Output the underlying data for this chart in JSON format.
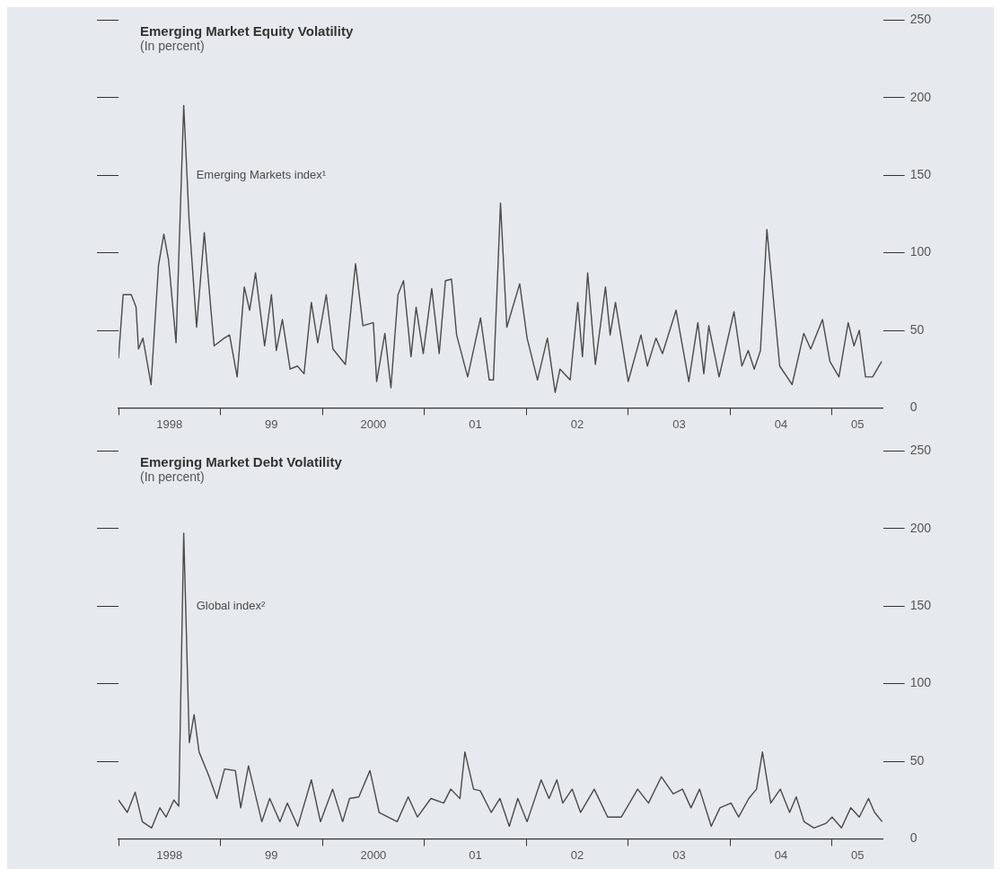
{
  "chart_data": [
    {
      "type": "line",
      "title": "Emerging Market Equity Volatility",
      "subtitle": "(In percent)",
      "xlim": [
        "1998-01-01",
        "2005-07-01"
      ],
      "xticks": [
        {
          "value": "1998-01-01",
          "label": null
        },
        {
          "value": "1998-07-01",
          "label": "1998"
        },
        {
          "value": "1999-01-01",
          "label": null
        },
        {
          "value": "1999-07-01",
          "label": "99"
        },
        {
          "value": "2000-01-01",
          "label": null
        },
        {
          "value": "2000-07-01",
          "label": "2000"
        },
        {
          "value": "2001-01-01",
          "label": null
        },
        {
          "value": "2001-07-01",
          "label": "01"
        },
        {
          "value": "2002-01-01",
          "label": null
        },
        {
          "value": "2002-07-01",
          "label": "02"
        },
        {
          "value": "2003-01-01",
          "label": null
        },
        {
          "value": "2003-07-01",
          "label": "03"
        },
        {
          "value": "2004-01-01",
          "label": null
        },
        {
          "value": "2004-07-01",
          "label": "04"
        },
        {
          "value": "2005-01-01",
          "label": null
        },
        {
          "value": "2005-04-01",
          "label": "05"
        }
      ],
      "ylim": [
        0,
        250
      ],
      "yticks": [
        0,
        50,
        100,
        150,
        200,
        250
      ],
      "marker": "none",
      "line_style": "solid",
      "series": [
        {
          "name": "Emerging Markets index¹",
          "color": "#4a4a4a",
          "x": [
            "1998-01-01",
            "1998-01-18",
            "1998-02-15",
            "1998-03-03",
            "1998-03-12",
            "1998-03-28",
            "1998-04-26",
            "1998-05-23",
            "1998-06-11",
            "1998-06-28",
            "1998-07-25",
            "1998-08-22",
            "1998-09-10",
            "1998-10-07",
            "1998-11-04",
            "1998-11-28",
            "1998-12-09",
            "1999-01-15",
            "1999-02-03",
            "1999-02-28",
            "1999-03-26",
            "1999-04-14",
            "1999-05-05",
            "1999-06-07",
            "1999-07-01",
            "1999-07-19",
            "1999-08-10",
            "1999-09-07",
            "1999-10-03",
            "1999-10-27",
            "1999-11-22",
            "1999-12-15",
            "2000-01-15",
            "2000-02-08",
            "2000-03-23",
            "2000-04-28",
            "2000-05-25",
            "2000-07-01",
            "2000-07-13",
            "2000-08-12",
            "2000-09-03",
            "2000-09-28",
            "2000-10-18",
            "2000-11-14",
            "2000-12-02",
            "2000-12-28",
            "2001-01-28",
            "2001-02-22",
            "2001-03-16",
            "2001-04-07",
            "2001-04-25",
            "2001-06-04",
            "2001-07-20",
            "2001-08-21",
            "2001-09-05",
            "2001-09-30",
            "2001-10-23",
            "2001-12-08",
            "2002-01-04",
            "2002-02-10",
            "2002-03-16",
            "2002-04-13",
            "2002-04-30",
            "2002-06-06",
            "2002-07-03",
            "2002-07-20",
            "2002-08-08",
            "2002-09-05",
            "2002-10-11",
            "2002-10-28",
            "2002-11-16",
            "2003-01-01",
            "2003-02-15",
            "2003-03-09",
            "2003-04-09",
            "2003-05-02",
            "2003-06-20",
            "2003-08-05",
            "2003-09-07",
            "2003-09-28",
            "2003-10-16",
            "2003-11-22",
            "2004-01-15",
            "2004-02-12",
            "2004-03-05",
            "2004-03-27",
            "2004-04-18",
            "2004-05-11",
            "2004-06-26",
            "2004-08-10",
            "2004-09-21",
            "2004-10-16",
            "2004-11-27",
            "2004-12-24",
            "2005-01-26",
            "2005-02-26",
            "2005-03-19",
            "2005-04-07",
            "2005-04-29",
            "2005-05-25",
            "2005-06-26"
          ],
          "values": [
            32,
            73,
            73,
            65,
            38,
            45,
            15,
            92,
            112,
            95,
            42,
            195,
            122,
            52,
            113,
            62,
            40,
            45,
            47,
            20,
            78,
            63,
            87,
            40,
            73,
            37,
            57,
            25,
            27,
            22,
            68,
            42,
            73,
            38,
            28,
            93,
            53,
            55,
            17,
            48,
            13,
            73,
            82,
            33,
            65,
            35,
            77,
            35,
            82,
            83,
            47,
            20,
            58,
            18,
            18,
            132,
            52,
            80,
            45,
            18,
            45,
            10,
            25,
            18,
            68,
            33,
            87,
            28,
            78,
            47,
            68,
            17,
            47,
            27,
            45,
            35,
            63,
            17,
            55,
            22,
            53,
            20,
            62,
            27,
            37,
            25,
            37,
            115,
            27,
            15,
            48,
            38,
            57,
            30,
            20,
            55,
            40,
            50,
            20,
            20,
            30
          ]
        }
      ]
    },
    {
      "type": "line",
      "title": "Emerging Market Debt Volatility",
      "subtitle": "(In percent)",
      "xlim": [
        "1998-01-01",
        "2005-07-01"
      ],
      "xticks": [
        {
          "value": "1998-01-01",
          "label": null
        },
        {
          "value": "1998-07-01",
          "label": "1998"
        },
        {
          "value": "1999-01-01",
          "label": null
        },
        {
          "value": "1999-07-01",
          "label": "99"
        },
        {
          "value": "2000-01-01",
          "label": null
        },
        {
          "value": "2000-07-01",
          "label": "2000"
        },
        {
          "value": "2001-01-01",
          "label": null
        },
        {
          "value": "2001-07-01",
          "label": "01"
        },
        {
          "value": "2002-01-01",
          "label": null
        },
        {
          "value": "2002-07-01",
          "label": "02"
        },
        {
          "value": "2003-01-01",
          "label": null
        },
        {
          "value": "2003-07-01",
          "label": "03"
        },
        {
          "value": "2004-01-01",
          "label": null
        },
        {
          "value": "2004-07-01",
          "label": "04"
        },
        {
          "value": "2005-01-01",
          "label": null
        },
        {
          "value": "2005-04-01",
          "label": "05"
        }
      ],
      "ylim": [
        0,
        250
      ],
      "yticks": [
        0,
        50,
        100,
        150,
        200,
        250
      ],
      "marker": "none",
      "line_style": "solid",
      "series": [
        {
          "name": "Global index²",
          "color": "#4a4a4a",
          "x": [
            "1998-01-01",
            "1998-02-02",
            "1998-02-28",
            "1998-03-26",
            "1998-04-28",
            "1998-05-28",
            "1998-06-19",
            "1998-07-17",
            "1998-08-04",
            "1998-08-22",
            "1998-09-11",
            "1998-09-28",
            "1998-10-16",
            "1998-11-19",
            "1998-12-19",
            "1999-01-16",
            "1999-02-22",
            "1999-03-13",
            "1999-04-10",
            "1999-05-28",
            "1999-06-25",
            "1999-08-01",
            "1999-08-28",
            "1999-10-04",
            "1999-11-22",
            "1999-12-25",
            "2000-02-07",
            "2000-03-13",
            "2000-04-07",
            "2000-05-10",
            "2000-06-19",
            "2000-07-22",
            "2000-09-25",
            "2000-11-04",
            "2000-12-07",
            "2001-01-25",
            "2001-03-10",
            "2001-04-04",
            "2001-05-07",
            "2001-05-25",
            "2001-06-25",
            "2001-07-19",
            "2001-08-28",
            "2001-09-28",
            "2001-11-01",
            "2001-12-01",
            "2002-01-04",
            "2002-02-22",
            "2002-03-22",
            "2002-04-19",
            "2002-05-10",
            "2002-06-13",
            "2002-07-13",
            "2002-09-01",
            "2002-10-19",
            "2002-12-07",
            "2003-02-04",
            "2003-03-13",
            "2003-04-28",
            "2003-06-10",
            "2003-07-13",
            "2003-08-13",
            "2003-09-13",
            "2003-10-25",
            "2003-11-25",
            "2004-01-04",
            "2004-02-01",
            "2004-03-07",
            "2004-04-04",
            "2004-04-25",
            "2004-05-25",
            "2004-06-28",
            "2004-08-01",
            "2004-08-25",
            "2004-09-22",
            "2004-10-28",
            "2004-12-10",
            "2005-01-01",
            "2005-02-04",
            "2005-03-07",
            "2005-04-07",
            "2005-05-10",
            "2005-06-01",
            "2005-06-28"
          ],
          "values": [
            25,
            17,
            30,
            11,
            7,
            20,
            14,
            25,
            21,
            197,
            62,
            80,
            56,
            41,
            26,
            45,
            44,
            20,
            47,
            11,
            26,
            11,
            23,
            8,
            38,
            11,
            32,
            11,
            26,
            27,
            44,
            17,
            11,
            27,
            14,
            26,
            23,
            32,
            26,
            56,
            32,
            31,
            17,
            26,
            8,
            26,
            11,
            38,
            26,
            38,
            23,
            32,
            17,
            32,
            14,
            14,
            32,
            23,
            40,
            29,
            32,
            20,
            32,
            8,
            20,
            23,
            14,
            26,
            32,
            56,
            23,
            32,
            17,
            27,
            11,
            7,
            10,
            14,
            7,
            20,
            14,
            26,
            17,
            11
          ]
        }
      ]
    }
  ]
}
